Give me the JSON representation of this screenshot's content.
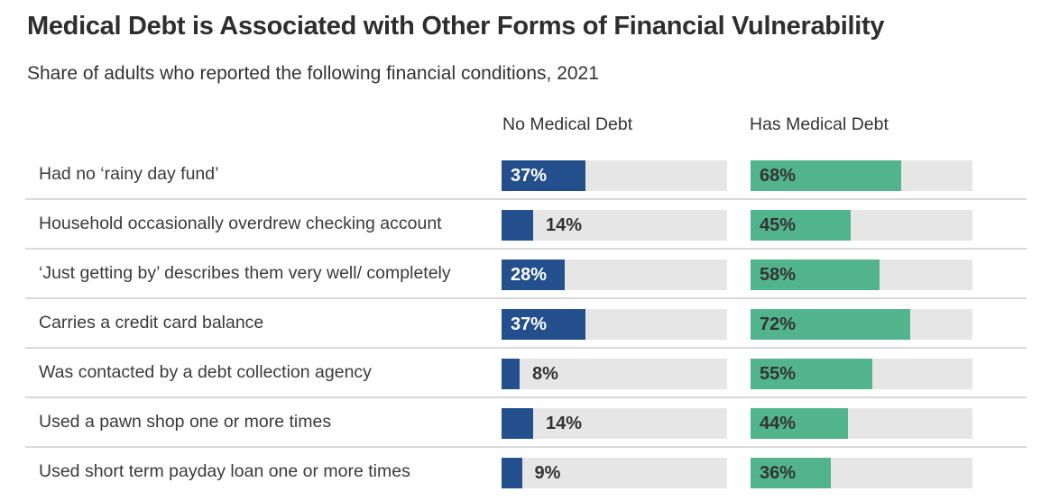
{
  "header": {
    "title": "Medical Debt is Associated with Other Forms of Financial Vulnerability",
    "subtitle": "Share of adults who reported the following financial conditions, 2021"
  },
  "columns": {
    "no_debt_label": "No Medical Debt",
    "has_debt_label": "Has Medical Debt"
  },
  "colors": {
    "no_debt_bar": "#234f8c",
    "has_debt_bar": "#52b48d",
    "track": "#e6e6e6",
    "divider": "#d9d9d9",
    "value_label_on_blue": "#ffffff",
    "value_label_on_green": "#333333",
    "value_label_outside": "#333333",
    "title_text": "#2e2e2e",
    "body_text": "#3a3a3a"
  },
  "chart_data": {
    "type": "bar",
    "orientation": "horizontal",
    "title": "Medical Debt is Associated with Other Forms of Financial Vulnerability",
    "subtitle": "Share of adults who reported the following financial conditions, 2021",
    "unit": "%",
    "xlim": [
      0,
      100
    ],
    "grid": false,
    "legend_position": "column-headers-top",
    "categories": [
      "Had no ‘rainy day fund’",
      "Household occasionally overdrew checking account",
      "‘Just getting by’ describes them very well/ completely",
      "Carries a credit card balance",
      "Was contacted by a debt collection agency",
      "Used a pawn shop one or more times",
      "Used short term payday loan one or more times"
    ],
    "series": [
      {
        "name": "No Medical Debt",
        "color": "#234f8c",
        "values": [
          37,
          14,
          28,
          37,
          8,
          14,
          9
        ]
      },
      {
        "name": "Has Medical Debt",
        "color": "#52b48d",
        "values": [
          68,
          45,
          58,
          72,
          55,
          44,
          36
        ]
      }
    ],
    "data_labels": [
      "37%",
      "14%",
      "28%",
      "37%",
      "8%",
      "14%",
      "9%",
      "68%",
      "45%",
      "58%",
      "72%",
      "55%",
      "44%",
      "36%"
    ]
  }
}
